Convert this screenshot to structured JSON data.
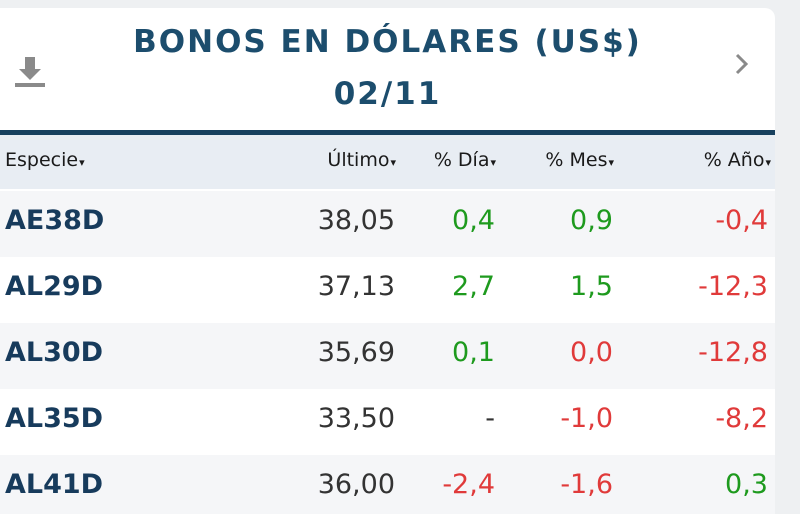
{
  "header": {
    "title": "BONOS EN DÓLARES (US$)",
    "date": "02/11"
  },
  "table": {
    "columns": [
      "Especie",
      "Último",
      "% Día",
      "% Mes",
      "% Año"
    ],
    "rows": [
      [
        {
          "text": "AE38D",
          "color": "#173b5c"
        },
        {
          "text": "38,05",
          "color": "#333333"
        },
        {
          "text": "0,4",
          "color": "#1e9a1e"
        },
        {
          "text": "0,9",
          "color": "#1e9a1e"
        },
        {
          "text": "-0,4",
          "color": "#e03a3a"
        }
      ],
      [
        {
          "text": "AL29D",
          "color": "#173b5c"
        },
        {
          "text": "37,13",
          "color": "#333333"
        },
        {
          "text": "2,7",
          "color": "#1e9a1e"
        },
        {
          "text": "1,5",
          "color": "#1e9a1e"
        },
        {
          "text": "-12,3",
          "color": "#e03a3a"
        }
      ],
      [
        {
          "text": "AL30D",
          "color": "#173b5c"
        },
        {
          "text": "35,69",
          "color": "#333333"
        },
        {
          "text": "0,1",
          "color": "#1e9a1e"
        },
        {
          "text": "0,0",
          "color": "#e03a3a"
        },
        {
          "text": "-12,8",
          "color": "#e03a3a"
        }
      ],
      [
        {
          "text": "AL35D",
          "color": "#173b5c"
        },
        {
          "text": "33,50",
          "color": "#333333"
        },
        {
          "text": "-",
          "color": "#333333"
        },
        {
          "text": "-1,0",
          "color": "#e03a3a"
        },
        {
          "text": "-8,2",
          "color": "#e03a3a"
        }
      ],
      [
        {
          "text": "AL41D",
          "color": "#173b5c"
        },
        {
          "text": "36,00",
          "color": "#333333"
        },
        {
          "text": "-2,4",
          "color": "#e03a3a"
        },
        {
          "text": "-1,6",
          "color": "#e03a3a"
        },
        {
          "text": "0,3",
          "color": "#1e9a1e"
        }
      ]
    ]
  }
}
